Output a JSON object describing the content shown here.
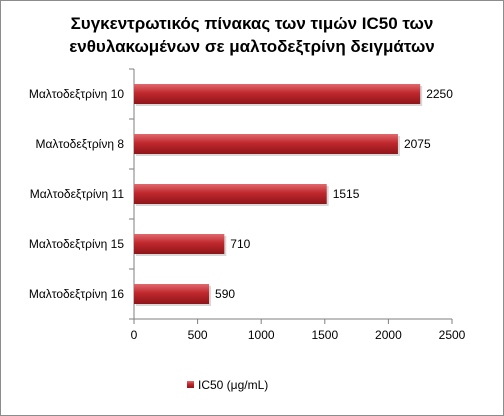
{
  "chart_data": {
    "type": "bar",
    "orientation": "horizontal",
    "title_lines": [
      "Συγκεντρωτικός πίνακας των τιμών IC50 των",
      "ενθυλακωμένων σε μαλτοδεξτρίνη δειγμάτων"
    ],
    "categories": [
      "Μαλτοδεξτρίνη 10",
      "Μαλτοδεξτρίνη 8",
      "Μαλτοδεξτρίνη 11",
      "Μαλτοδεξτρίνη 15",
      "Μαλτοδεξτρίνη 16"
    ],
    "series": [
      {
        "name": "IC50 (μg/mL)",
        "values": [
          2250,
          2075,
          1515,
          710,
          590
        ],
        "color": "#c0282d"
      }
    ],
    "data_labels": [
      "2250",
      "2075",
      "1515",
      "710",
      "590"
    ],
    "xlim": [
      0,
      2500
    ],
    "x_ticks": [
      0,
      500,
      1000,
      1500,
      2000,
      2500
    ],
    "grid": false,
    "legend_position": "bottom"
  }
}
